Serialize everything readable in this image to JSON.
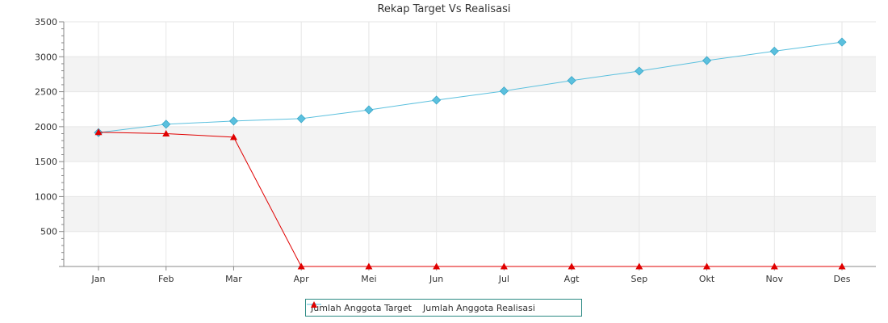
{
  "chart_data": {
    "type": "line",
    "title": "Rekap Target Vs Realisasi",
    "categories": [
      "Jan",
      "Feb",
      "Mar",
      "Apr",
      "Mei",
      "Jun",
      "Jul",
      "Agt",
      "Sep",
      "Okt",
      "Nov",
      "Des"
    ],
    "yticks": [
      "500",
      "1000",
      "1500",
      "2000",
      "2500",
      "3000",
      "3500"
    ],
    "ylim": [
      0,
      3500
    ],
    "grid": true,
    "legend_position": "bottom",
    "series": [
      {
        "name": "Jumlah Anggota Target",
        "color": "#5bc0de",
        "marker": "diamond",
        "values": [
          1915,
          2035,
          2080,
          2115,
          2240,
          2380,
          2510,
          2660,
          2795,
          2945,
          3080,
          3210
        ]
      },
      {
        "name": "Jumlah Anggota Realisasi",
        "color": "#e00000",
        "marker": "triangle",
        "values": [
          1920,
          1900,
          1850,
          0,
          0,
          0,
          0,
          0,
          0,
          0,
          0,
          0
        ]
      }
    ]
  }
}
